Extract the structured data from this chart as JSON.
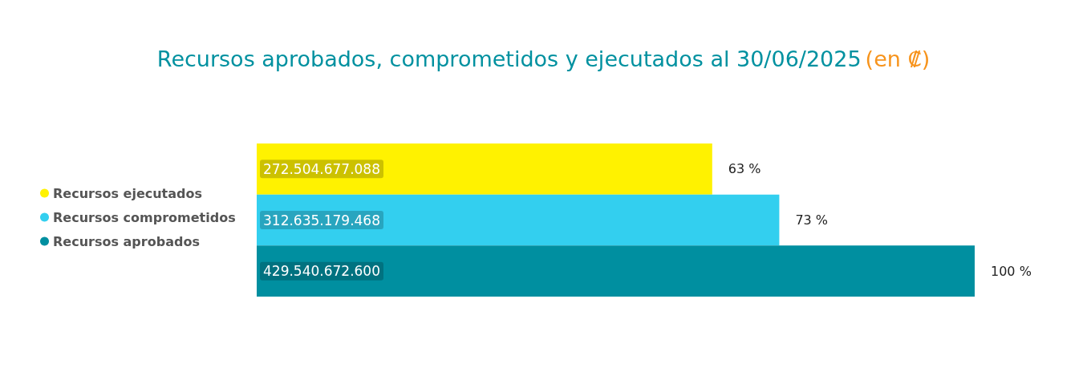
{
  "chart_data": {
    "type": "bar",
    "orientation": "horizontal",
    "title": "Recursos aprobados, comprometidos y ejecutados al 30/06/2025",
    "subtitle": "(en ₡)",
    "categories": [
      null
    ],
    "series": [
      {
        "name": "Recursos ejecutados",
        "color": "#fff200",
        "values": [
          272504677088
        ],
        "value_labels": [
          "272.504.677.088"
        ]
      },
      {
        "name": "Recursos comprometidos",
        "color": "#33cfef",
        "values": [
          312635179468
        ],
        "value_labels": [
          "312.635.179.468"
        ]
      },
      {
        "name": "Recursos aprobados",
        "color": "#008fa0",
        "values": [
          429540672600
        ],
        "value_labels": [
          "429.540.672.600"
        ]
      }
    ],
    "annotations": [
      {
        "text": "63 %",
        "x": 272504677088
      },
      {
        "text": "73 %",
        "x": 312635179468
      },
      {
        "text": "100 %",
        "x": 429540672600
      }
    ],
    "legend": "left"
  }
}
